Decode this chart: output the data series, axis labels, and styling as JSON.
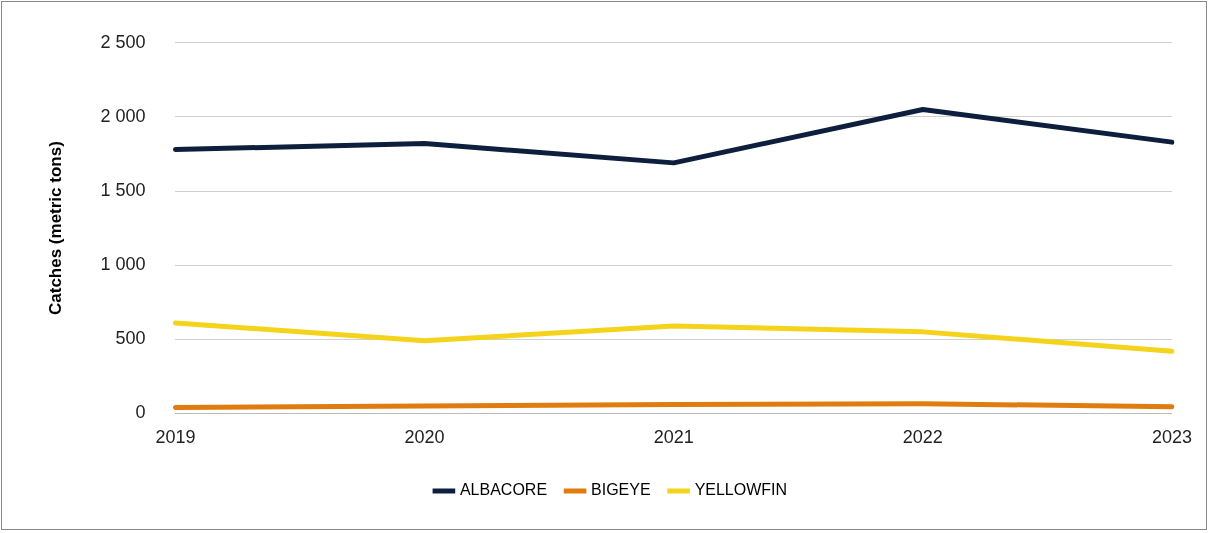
{
  "chart_data": {
    "type": "line",
    "ylabel": "Catches (metric tons)",
    "categories": [
      "2019",
      "2020",
      "2021",
      "2022",
      "2023"
    ],
    "series": [
      {
        "name": "ALBACORE",
        "color": "#0e1f3d",
        "values": [
          1780,
          1820,
          1690,
          2050,
          1830
        ]
      },
      {
        "name": "BIGEYE",
        "color": "#e07b10",
        "values": [
          40,
          50,
          60,
          65,
          45
        ]
      },
      {
        "name": "YELLOWFIN",
        "color": "#f5d31a",
        "values": [
          610,
          490,
          590,
          550,
          420
        ]
      }
    ],
    "ylim": [
      0,
      2500
    ],
    "yticks": [
      0,
      500,
      {
        "value": 1000,
        "label": "1 000"
      },
      {
        "value": 1500,
        "label": "1 500"
      },
      {
        "value": 2000,
        "label": "2 000"
      },
      {
        "value": 2500,
        "label": "2 500"
      }
    ],
    "grid": "y",
    "legend": "bottom",
    "marker": "none",
    "line_style": "solid"
  }
}
